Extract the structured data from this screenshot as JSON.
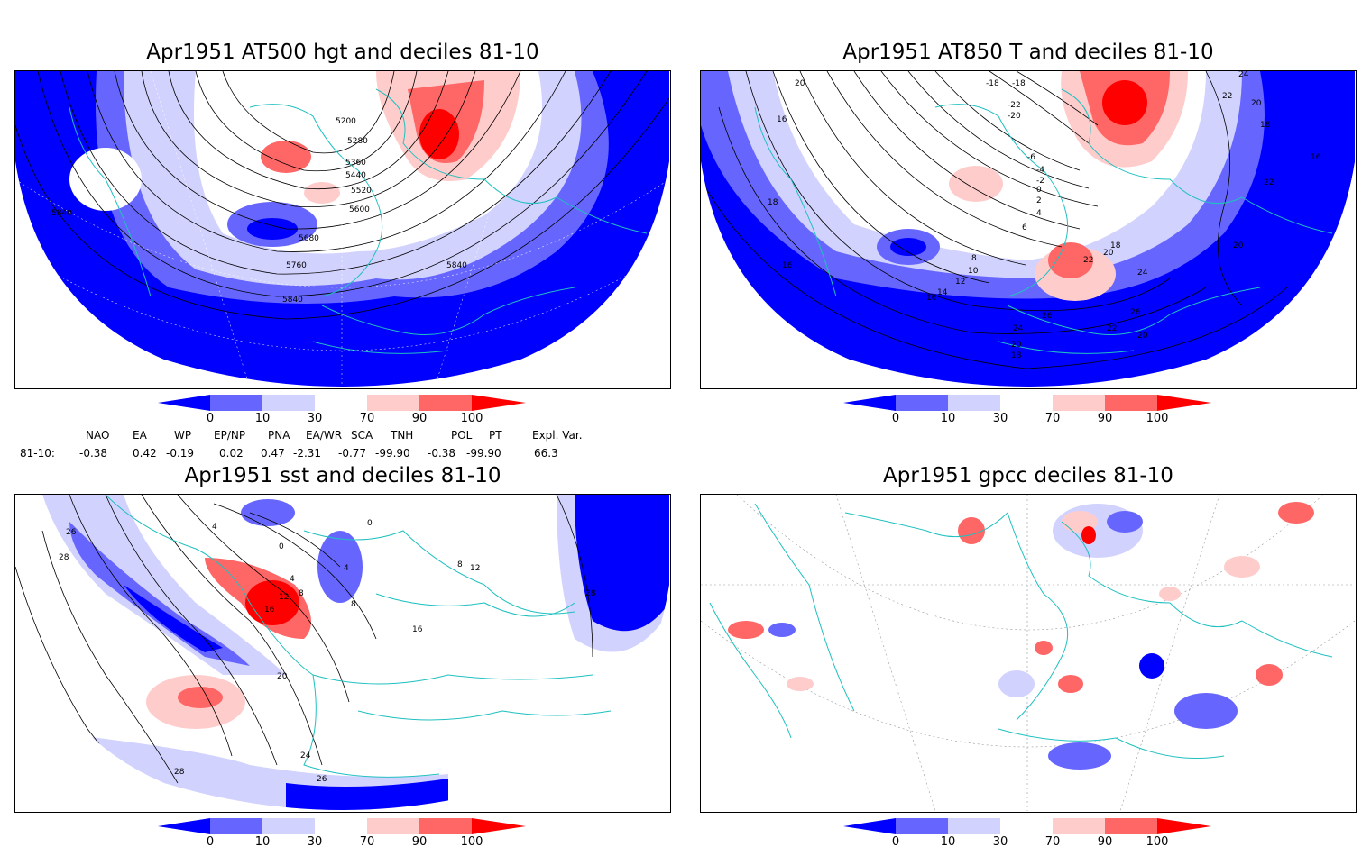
{
  "titles": {
    "tl": "Apr1951 AT500 hgt and deciles 81-10",
    "tr": "Apr1951 AT850 T and deciles 81-10",
    "bl": "Apr1951 sst and deciles 81-10",
    "br": "Apr1951 gpcc deciles 81-10"
  },
  "colorbar": {
    "labels": [
      "0",
      "10",
      "30",
      "70",
      "90",
      "100"
    ],
    "colors": [
      "#0000ff",
      "#6666ff",
      "#d2d2ff",
      "#ffffff",
      "#ffcccc",
      "#ff6666",
      "#ff0000"
    ]
  },
  "indices": {
    "row_label": "81-10:",
    "headers": [
      "NAO",
      "EA",
      "WP",
      "EP/NP",
      "PNA",
      "EA/WR",
      "SCA",
      "TNH",
      "POL",
      "PT",
      "Expl. Var."
    ],
    "values": [
      "-0.38",
      "0.42",
      "-0.19",
      "0.02",
      "0.47",
      "-2.31",
      "-0.77",
      "-99.90",
      "-0.38",
      "-99.90",
      "66.3"
    ]
  },
  "contour_labels": {
    "tl": [
      "5200",
      "5280",
      "5360",
      "5440",
      "5520",
      "5600",
      "5680",
      "5760",
      "5840",
      "5840",
      "5840"
    ],
    "tr": [
      "20",
      "16",
      "18",
      "16",
      "-18",
      "-18",
      "-22",
      "-20",
      "-6",
      "-4",
      "-2",
      "0",
      "2",
      "4",
      "6",
      "8",
      "10",
      "12",
      "14",
      "16",
      "18",
      "20",
      "22",
      "24",
      "26",
      "26",
      "24",
      "22",
      "20",
      "20",
      "18",
      "24",
      "22",
      "20",
      "18",
      "16",
      "22",
      "20"
    ],
    "bl": [
      "26",
      "28",
      "4",
      "0",
      "0",
      "4",
      "8",
      "12",
      "16",
      "8",
      "4",
      "8",
      "12",
      "16",
      "20",
      "24",
      "26",
      "28",
      "28"
    ]
  }
}
